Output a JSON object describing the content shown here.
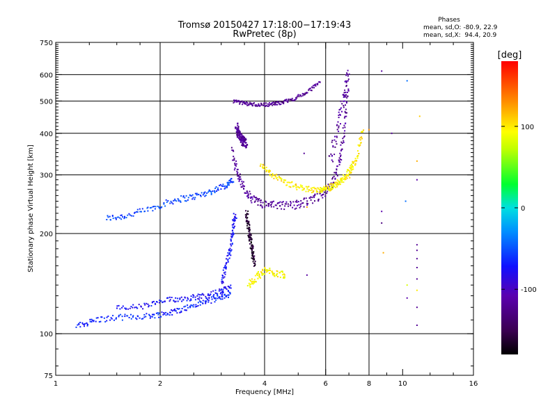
{
  "chart_data": {
    "type": "scatter",
    "title": "Tromsø 20150427 17:18:00−17:19:43",
    "subtitle": "RwPretec (8p)",
    "info": {
      "heading": "Phases",
      "line1": "mean, sd,O: -80.9, 22.9",
      "line2": "mean, sd,X:  94.4, 20.9"
    },
    "xlabel": "Frequency [MHz]",
    "ylabel": "Stationary phase Virtual Height [km]",
    "x_scale": "log",
    "y_scale": "log",
    "xlim": [
      1,
      16
    ],
    "ylim": [
      75,
      750
    ],
    "x_ticks": [
      1,
      2,
      4,
      6,
      8,
      10,
      16
    ],
    "y_ticks": [
      75,
      100,
      200,
      300,
      400,
      500,
      600,
      750
    ],
    "x_grid": [
      2,
      4,
      6,
      8
    ],
    "y_grid": [
      100,
      200,
      300,
      400,
      500,
      600
    ],
    "grid": true,
    "colorbar": {
      "label": "[deg]",
      "range": [
        -180,
        180
      ],
      "ticks": [
        100,
        0,
        -100
      ]
    },
    "trace_label": "phase [deg]",
    "series": [
      {
        "x": [
          1.4,
          1.6,
          1.9,
          2.2,
          2.5,
          2.8,
          3.1,
          3.25
        ],
        "y": [
          222,
          226,
          238,
          252,
          258,
          267,
          280,
          290
        ],
        "phase": -55,
        "spread": 0.022
      },
      {
        "x": [
          1.15,
          1.3,
          1.55,
          1.85,
          2.1,
          2.35,
          2.65,
          2.95,
          3.2
        ],
        "y": [
          105,
          110,
          112,
          113,
          115,
          119,
          124,
          128,
          132
        ],
        "phase": -65,
        "spread": 0.02
      },
      {
        "x": [
          1.5,
          1.8,
          2.1,
          2.4,
          2.7,
          3.0,
          3.2
        ],
        "y": [
          119,
          121,
          126,
          128,
          130,
          134,
          138
        ],
        "phase": -75,
        "spread": 0.02
      },
      {
        "x": [
          3.25,
          3.5,
          3.8,
          4.1,
          4.4,
          4.8,
          5.3,
          5.8
        ],
        "y": [
          500,
          492,
          487,
          488,
          493,
          505,
          530,
          575
        ],
        "phase": -120,
        "spread": 0.012
      },
      {
        "x": [
          3.32,
          3.35,
          3.38,
          3.42,
          3.46,
          3.5,
          3.55
        ],
        "y": [
          420,
          405,
          395,
          388,
          380,
          376,
          372
        ],
        "phase": -120,
        "spread": 0.03
      },
      {
        "x": [
          3.22,
          3.35,
          3.5,
          3.7,
          4.0,
          4.4,
          4.9,
          5.4,
          5.9,
          6.3,
          6.6,
          6.8,
          6.95
        ],
        "y": [
          355,
          300,
          270,
          252,
          244,
          242,
          244,
          250,
          262,
          285,
          330,
          420,
          560
        ],
        "phase": -118,
        "spread": 0.03
      },
      {
        "x": [
          6.2,
          6.5,
          6.8,
          7.0
        ],
        "y": [
          330,
          420,
          520,
          610
        ],
        "phase": -118,
        "spread": 0.04
      },
      {
        "x": [
          3.55,
          3.58,
          3.62,
          3.66,
          3.7,
          3.75
        ],
        "y": [
          230,
          215,
          200,
          185,
          172,
          162
        ],
        "phase": -165,
        "spread": 0.03
      },
      {
        "x": [
          3.0,
          3.1,
          3.2,
          3.25,
          3.3
        ],
        "y": [
          140,
          160,
          185,
          210,
          230
        ],
        "phase": -75,
        "spread": 0.03
      },
      {
        "x": [
          3.6,
          3.8,
          4.0,
          4.3,
          4.6
        ],
        "y": [
          140,
          148,
          155,
          152,
          150
        ],
        "phase": 95,
        "spread": 0.025
      },
      {
        "x": [
          3.9,
          4.2,
          4.6,
          5.1,
          5.6,
          6.0,
          6.5,
          7.0,
          7.4,
          7.7
        ],
        "y": [
          325,
          300,
          284,
          274,
          270,
          272,
          282,
          300,
          340,
          420
        ],
        "phase": 100,
        "spread": 0.02
      },
      {
        "x": [
          5.8,
          6.3,
          6.8,
          7.3
        ],
        "y": [
          268,
          275,
          295,
          330
        ],
        "phase": 92,
        "spread": 0.02
      }
    ],
    "isolated": [
      {
        "x": 8.7,
        "y": 615,
        "phase": -115
      },
      {
        "x": 8.7,
        "y": 233,
        "phase": -110
      },
      {
        "x": 8.7,
        "y": 215,
        "phase": -130
      },
      {
        "x": 8.8,
        "y": 175,
        "phase": 120
      },
      {
        "x": 9.3,
        "y": 400,
        "phase": -120
      },
      {
        "x": 10.3,
        "y": 575,
        "phase": -40
      },
      {
        "x": 10.2,
        "y": 250,
        "phase": -40
      },
      {
        "x": 10.3,
        "y": 140,
        "phase": 80
      },
      {
        "x": 10.3,
        "y": 128,
        "phase": -110
      },
      {
        "x": 11.0,
        "y": 290,
        "phase": -110
      },
      {
        "x": 11.0,
        "y": 185,
        "phase": -120
      },
      {
        "x": 11.0,
        "y": 178,
        "phase": -120
      },
      {
        "x": 11.0,
        "y": 168,
        "phase": -120
      },
      {
        "x": 11.0,
        "y": 158,
        "phase": -120
      },
      {
        "x": 11.0,
        "y": 146,
        "phase": -120
      },
      {
        "x": 11.0,
        "y": 135,
        "phase": 100
      },
      {
        "x": 11.0,
        "y": 120,
        "phase": -120
      },
      {
        "x": 11.0,
        "y": 106,
        "phase": -120
      },
      {
        "x": 11.2,
        "y": 450,
        "phase": 110
      },
      {
        "x": 11.0,
        "y": 330,
        "phase": 120
      },
      {
        "x": 8.0,
        "y": 410,
        "phase": 130
      },
      {
        "x": 5.3,
        "y": 240,
        "phase": 120
      },
      {
        "x": 5.3,
        "y": 150,
        "phase": -115
      },
      {
        "x": 5.2,
        "y": 348,
        "phase": -120
      }
    ]
  }
}
